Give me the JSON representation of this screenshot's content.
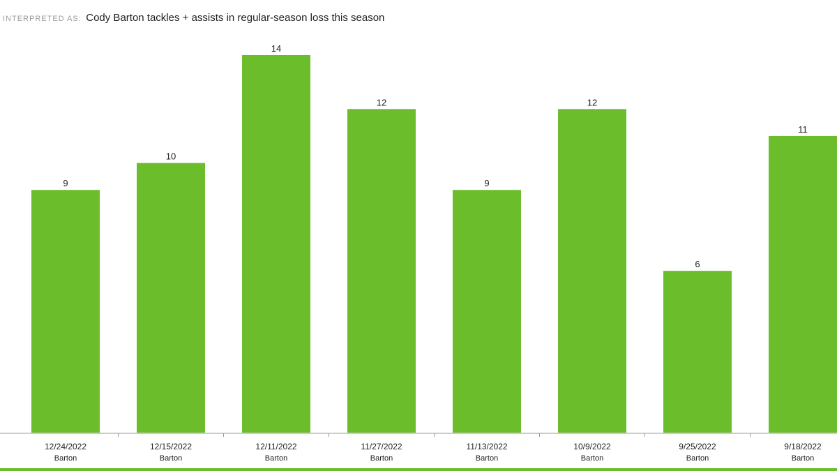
{
  "header": {
    "label": "INTERPRETED AS:",
    "query": "Cody Barton tackles + assists in regular-season loss this season"
  },
  "colors": {
    "bar": "#6bbd2c",
    "axis": "#999999",
    "text": "#222222"
  },
  "chart_data": {
    "type": "bar",
    "categories": [
      {
        "date": "12/24/2022",
        "player": "Barton"
      },
      {
        "date": "12/15/2022",
        "player": "Barton"
      },
      {
        "date": "12/11/2022",
        "player": "Barton"
      },
      {
        "date": "11/27/2022",
        "player": "Barton"
      },
      {
        "date": "11/13/2022",
        "player": "Barton"
      },
      {
        "date": "10/9/2022",
        "player": "Barton"
      },
      {
        "date": "9/25/2022",
        "player": "Barton"
      },
      {
        "date": "9/18/2022",
        "player": "Barton"
      }
    ],
    "values": [
      9,
      10,
      14,
      12,
      9,
      12,
      6,
      11
    ],
    "ylim": [
      0,
      14
    ],
    "data_labels": true,
    "grid": false,
    "legend": "none"
  }
}
